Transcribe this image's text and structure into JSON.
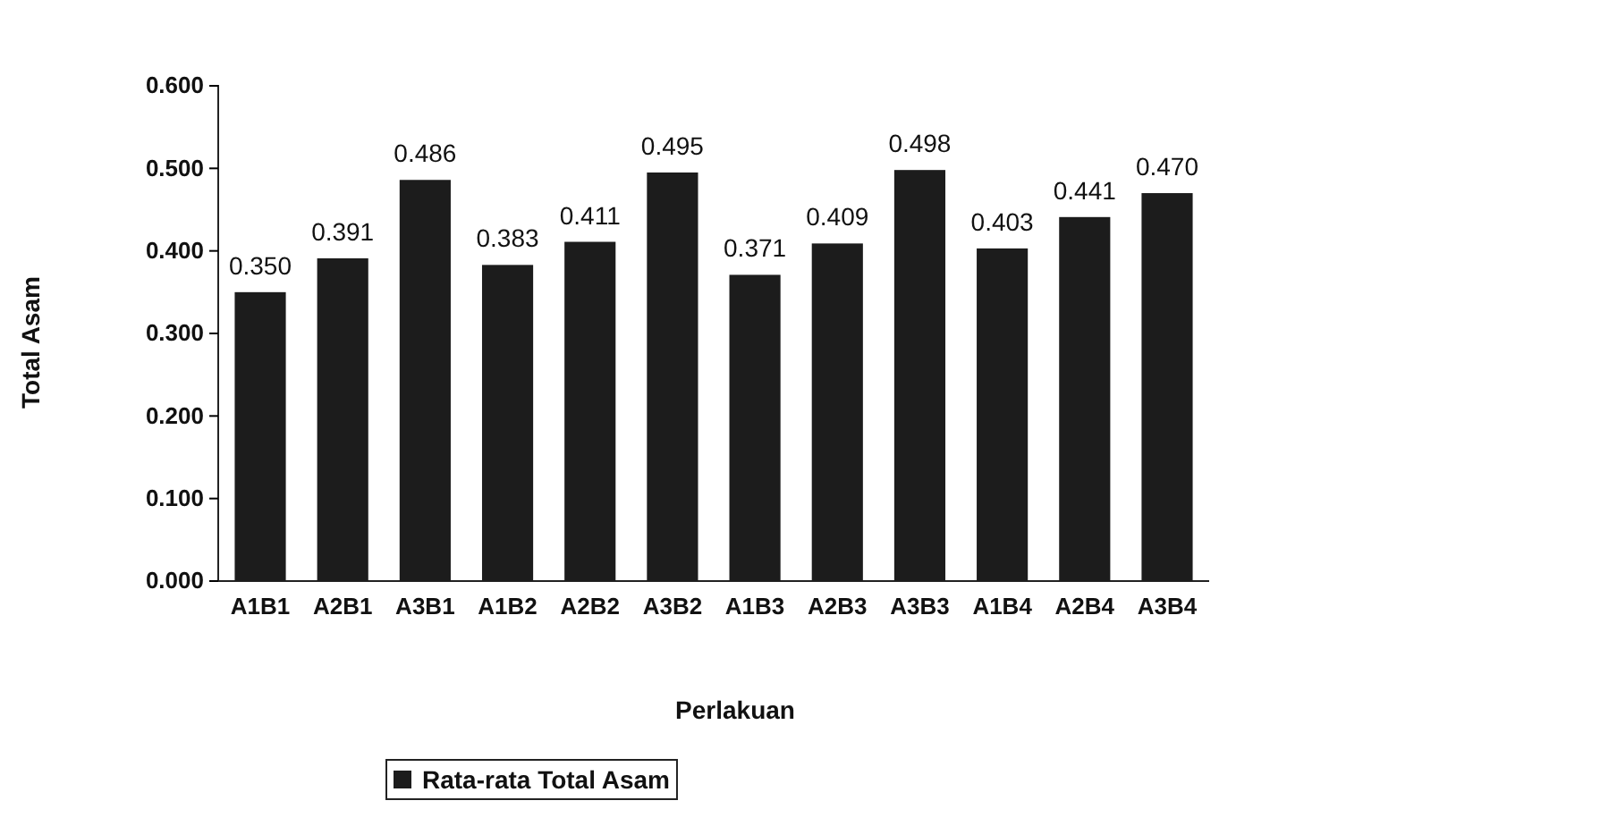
{
  "chart_data": {
    "type": "bar",
    "xlabel": "Perlakuan",
    "ylabel": "Total Asam",
    "categories": [
      "A1B1",
      "A2B1",
      "A3B1",
      "A1B2",
      "A2B2",
      "A3B2",
      "A1B3",
      "A2B3",
      "A3B3",
      "A1B4",
      "A2B4",
      "A3B4"
    ],
    "series": [
      {
        "name": "Rata-rata Total Asam",
        "color": "#1c1c1c",
        "values": [
          0.35,
          0.391,
          0.486,
          0.383,
          0.411,
          0.495,
          0.371,
          0.409,
          0.498,
          0.403,
          0.441,
          0.47
        ]
      }
    ],
    "value_labels": [
      "0.350",
      "0.391",
      "0.486",
      "0.383",
      "0.411",
      "0.495",
      "0.371",
      "0.409",
      "0.498",
      "0.403",
      "0.441",
      "0.470"
    ],
    "ylim": [
      0,
      0.6
    ],
    "yticks": [
      {
        "value": 0,
        "label": "0.000"
      },
      {
        "value": 0.1,
        "label": "0.100"
      },
      {
        "value": 0.2,
        "label": "0.200"
      },
      {
        "value": 0.3,
        "label": "0.300"
      },
      {
        "value": 0.4,
        "label": "0.400"
      },
      {
        "value": 0.5,
        "label": "0.500"
      },
      {
        "value": 0.6,
        "label": "0.600"
      }
    ],
    "grid": false,
    "legend": "bottom"
  }
}
